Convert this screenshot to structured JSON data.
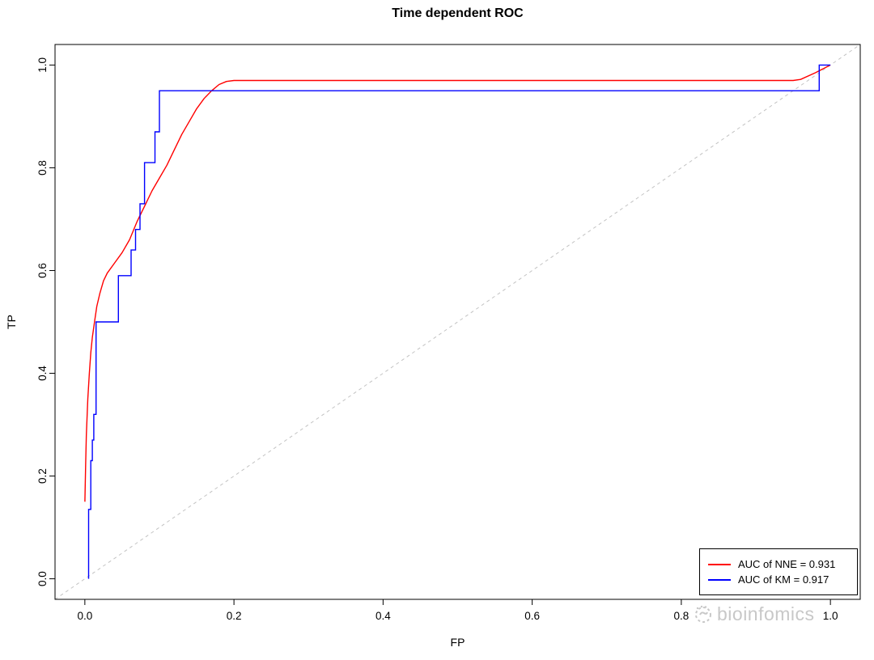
{
  "title": "Time dependent ROC",
  "watermark": {
    "text": "bioinfomics"
  },
  "chart_data": {
    "type": "line",
    "title": "Time dependent ROC",
    "xlabel": "FP",
    "ylabel": "TP",
    "xlim": [
      0,
      1
    ],
    "ylim": [
      0,
      1
    ],
    "xticks": [
      0.0,
      0.2,
      0.4,
      0.6,
      0.8,
      1.0
    ],
    "yticks": [
      0.0,
      0.2,
      0.4,
      0.6,
      0.8,
      1.0
    ],
    "grid": false,
    "reference_line": {
      "type": "diagonal",
      "style": "dashed",
      "color": "#c3c3c3"
    },
    "legend": {
      "position": "bottom-right",
      "entries": [
        {
          "label": "AUC of NNE = 0.931",
          "color": "#ff0000"
        },
        {
          "label": "AUC of KM = 0.917",
          "color": "#0000ff"
        }
      ]
    },
    "series": [
      {
        "name": "NNE",
        "auc": 0.931,
        "color": "#ff0000",
        "style": "smooth",
        "points": [
          [
            0.0,
            0.15
          ],
          [
            0.001,
            0.22
          ],
          [
            0.002,
            0.28
          ],
          [
            0.004,
            0.35
          ],
          [
            0.006,
            0.4
          ],
          [
            0.008,
            0.44
          ],
          [
            0.01,
            0.47
          ],
          [
            0.013,
            0.5
          ],
          [
            0.016,
            0.53
          ],
          [
            0.02,
            0.555
          ],
          [
            0.025,
            0.58
          ],
          [
            0.03,
            0.595
          ],
          [
            0.04,
            0.615
          ],
          [
            0.05,
            0.635
          ],
          [
            0.06,
            0.66
          ],
          [
            0.07,
            0.695
          ],
          [
            0.08,
            0.725
          ],
          [
            0.09,
            0.755
          ],
          [
            0.1,
            0.78
          ],
          [
            0.11,
            0.805
          ],
          [
            0.12,
            0.835
          ],
          [
            0.13,
            0.865
          ],
          [
            0.14,
            0.89
          ],
          [
            0.15,
            0.915
          ],
          [
            0.16,
            0.935
          ],
          [
            0.17,
            0.95
          ],
          [
            0.18,
            0.962
          ],
          [
            0.19,
            0.968
          ],
          [
            0.2,
            0.97
          ],
          [
            0.95,
            0.97
          ],
          [
            0.96,
            0.972
          ],
          [
            0.98,
            0.985
          ],
          [
            1.0,
            1.0
          ]
        ]
      },
      {
        "name": "KM",
        "auc": 0.917,
        "color": "#0000ff",
        "style": "step",
        "points": [
          [
            0.005,
            0.0
          ],
          [
            0.005,
            0.135
          ],
          [
            0.008,
            0.135
          ],
          [
            0.008,
            0.23
          ],
          [
            0.01,
            0.23
          ],
          [
            0.01,
            0.27
          ],
          [
            0.012,
            0.27
          ],
          [
            0.012,
            0.32
          ],
          [
            0.015,
            0.32
          ],
          [
            0.015,
            0.5
          ],
          [
            0.045,
            0.5
          ],
          [
            0.045,
            0.59
          ],
          [
            0.062,
            0.59
          ],
          [
            0.062,
            0.64
          ],
          [
            0.068,
            0.64
          ],
          [
            0.068,
            0.68
          ],
          [
            0.074,
            0.68
          ],
          [
            0.074,
            0.73
          ],
          [
            0.08,
            0.73
          ],
          [
            0.08,
            0.81
          ],
          [
            0.094,
            0.81
          ],
          [
            0.094,
            0.87
          ],
          [
            0.1,
            0.87
          ],
          [
            0.1,
            0.95
          ],
          [
            0.985,
            0.95
          ],
          [
            0.985,
            1.0
          ],
          [
            1.0,
            1.0
          ]
        ]
      }
    ]
  }
}
